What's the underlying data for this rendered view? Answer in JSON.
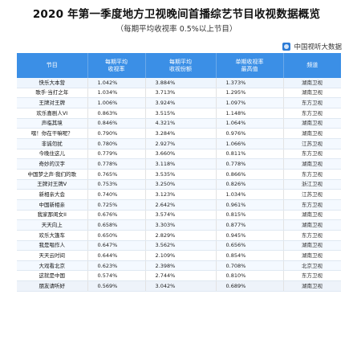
{
  "title": "2020 年第一季度地方卫视晚间首播综艺节目收视数据概览",
  "subtitle": "（每期平均收视率 0.5%以上节目）",
  "brand": "中国视听大数据",
  "headers": [
    "节目",
    "每期平均\n收视率",
    "每期平均\n收视份额",
    "单期收视率\n最高值",
    "频道"
  ],
  "rows": [
    [
      "快乐大本营",
      "1.042%",
      "3.884%",
      "1.373%",
      "湖南卫视"
    ],
    [
      "歌手·当打之年",
      "1.034%",
      "3.713%",
      "1.295%",
      "湖南卫视"
    ],
    [
      "王牌对王牌",
      "1.006%",
      "3.924%",
      "1.097%",
      "东方卫视"
    ],
    [
      "欢乐喜剧人VI",
      "0.863%",
      "3.515%",
      "1.148%",
      "东方卫视"
    ],
    [
      "声临其境",
      "0.846%",
      "4.321%",
      "1.064%",
      "湖南卫视"
    ],
    [
      "嘿！你在干嘛呢？",
      "0.790%",
      "3.284%",
      "0.976%",
      "湖南卫视"
    ],
    [
      "非诚勿扰",
      "0.780%",
      "2.927%",
      "1.066%",
      "江苏卫视"
    ],
    [
      "今晚住这儿",
      "0.779%",
      "3.660%",
      "0.811%",
      "东方卫视"
    ],
    [
      "奇妙的汉字",
      "0.778%",
      "3.118%",
      "0.778%",
      "湖南卫视"
    ],
    [
      "中国梦之声·我们的歌",
      "0.765%",
      "3.535%",
      "0.866%",
      "东方卫视"
    ],
    [
      "王牌对王牌V",
      "0.753%",
      "3.250%",
      "0.826%",
      "浙江卫视"
    ],
    [
      "新相亲大会",
      "0.740%",
      "3.123%",
      "1.034%",
      "江苏卫视"
    ],
    [
      "中国新相亲",
      "0.725%",
      "2.642%",
      "0.961%",
      "东方卫视"
    ],
    [
      "我家那闺女II",
      "0.676%",
      "3.574%",
      "0.815%",
      "湖南卫视"
    ],
    [
      "天天向上",
      "0.658%",
      "3.303%",
      "0.877%",
      "湖南卫视"
    ],
    [
      "欢乐大篷车",
      "0.650%",
      "2.829%",
      "0.945%",
      "东方卫视"
    ],
    [
      "我是唱作人",
      "0.647%",
      "3.562%",
      "0.656%",
      "湖南卫视"
    ],
    [
      "天天云时间",
      "0.644%",
      "2.109%",
      "0.854%",
      "湖南卫视"
    ],
    [
      "大戏看北京",
      "0.623%",
      "2.398%",
      "0.708%",
      "北京卫视"
    ],
    [
      "这就是中国",
      "0.574%",
      "2.744%",
      "0.810%",
      "东方卫视"
    ],
    [
      "朋友请听好",
      "0.569%",
      "3.042%",
      "0.689%",
      "湖南卫视"
    ]
  ]
}
